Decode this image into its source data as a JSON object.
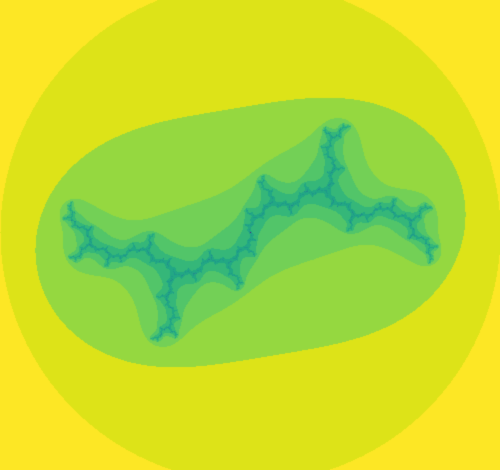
{
  "image": {
    "subject": "julia-set-fractal",
    "colormap": [
      "#fde725",
      "#dde318",
      "#bddf26",
      "#95d840",
      "#73d056",
      "#52c569",
      "#35b779",
      "#22a884",
      "#1f988b",
      "#23898e",
      "#2a788e",
      "#31688e",
      "#3b528b",
      "#443a83",
      "#482173"
    ],
    "background_color": "#fde725"
  }
}
